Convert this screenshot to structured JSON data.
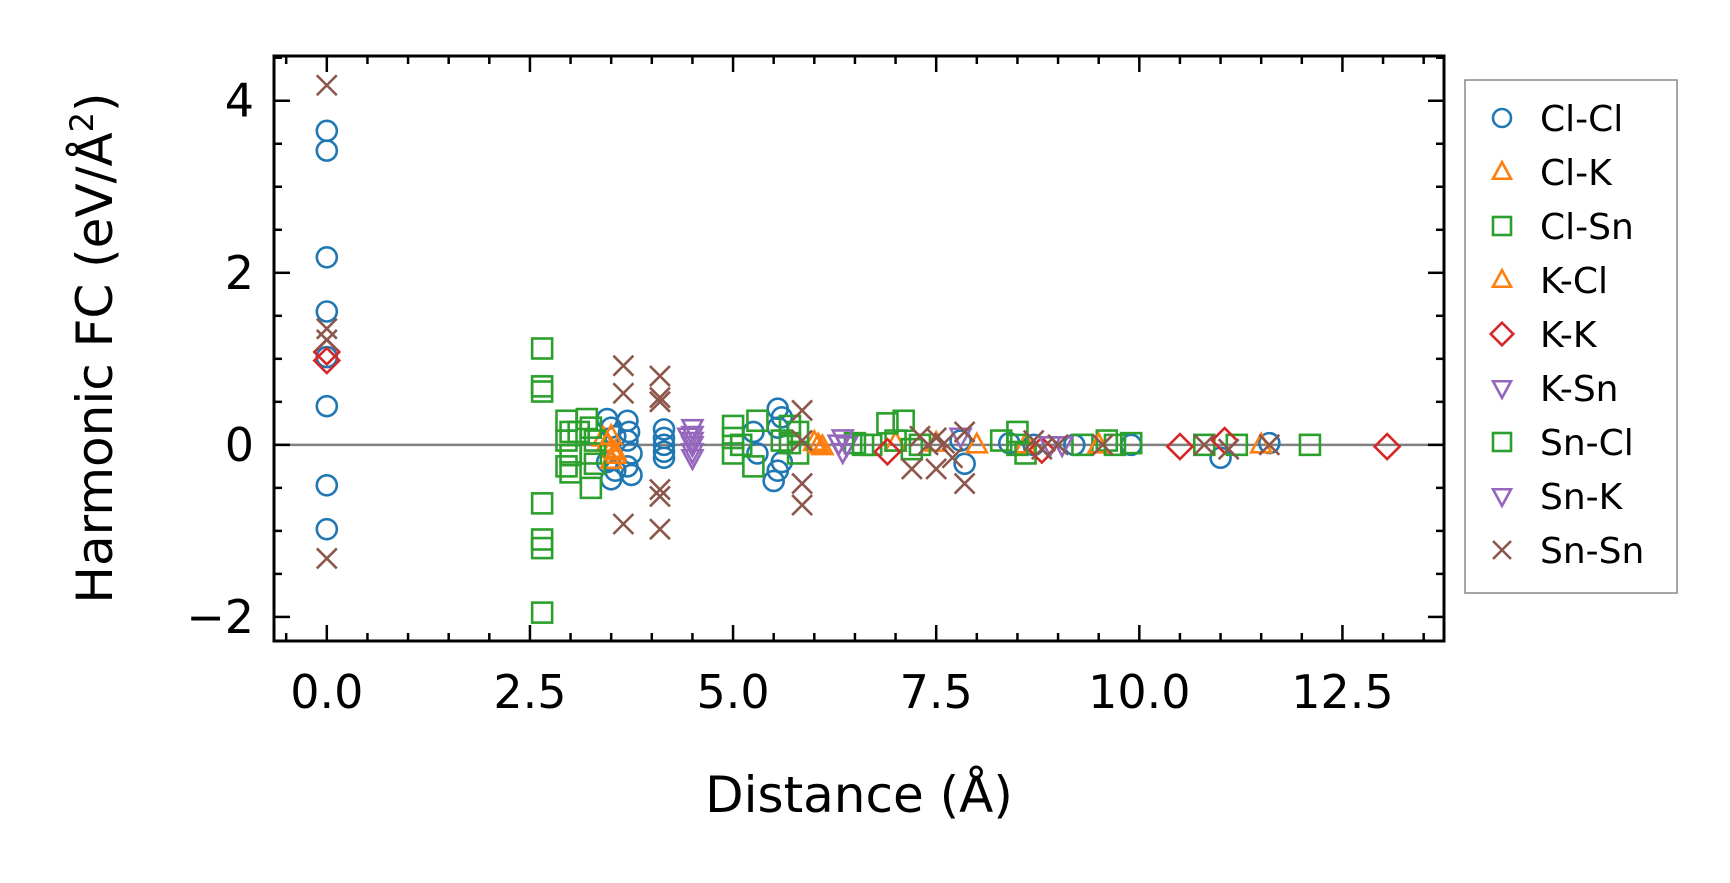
{
  "chart_data": {
    "type": "scatter",
    "xlabel": "Distance (Å)",
    "ylabel": "Harmonic FC (eV/Å",
    "ylabel_sup": "2",
    "ylabel_end": ")",
    "xlim": [
      -0.65,
      13.75
    ],
    "ylim": [
      -2.28,
      4.52
    ],
    "xticks": [
      0.0,
      2.5,
      5.0,
      7.5,
      10.0,
      12.5
    ],
    "xtick_labels": [
      "0.0",
      "2.5",
      "5.0",
      "7.5",
      "10.0",
      "12.5"
    ],
    "yticks": [
      -2,
      0,
      2,
      4
    ],
    "ytick_labels": [
      "−2",
      "0",
      "2",
      "4"
    ],
    "zero_line": 0,
    "legend_position": "right outside",
    "series": [
      {
        "name": "Cl-Cl",
        "marker": "circle",
        "color": "#1f77b4",
        "points": [
          [
            0,
            3.65
          ],
          [
            0,
            3.42
          ],
          [
            0,
            2.18
          ],
          [
            0,
            1.55
          ],
          [
            0,
            1.02
          ],
          [
            0,
            0.45
          ],
          [
            0,
            -0.47
          ],
          [
            0,
            -0.98
          ],
          [
            3.45,
            0.3
          ],
          [
            3.5,
            0.2
          ],
          [
            3.55,
            0.1
          ],
          [
            3.45,
            -0.2
          ],
          [
            3.55,
            -0.3
          ],
          [
            3.5,
            -0.4
          ],
          [
            3.7,
            0.28
          ],
          [
            3.72,
            0.15
          ],
          [
            3.7,
            0.05
          ],
          [
            3.75,
            -0.1
          ],
          [
            3.7,
            -0.25
          ],
          [
            3.75,
            -0.35
          ],
          [
            4.15,
            0.18
          ],
          [
            4.15,
            0.08
          ],
          [
            4.15,
            0.0
          ],
          [
            4.15,
            -0.08
          ],
          [
            4.15,
            -0.15
          ],
          [
            5.55,
            0.42
          ],
          [
            5.6,
            0.32
          ],
          [
            5.55,
            0.2
          ],
          [
            5.6,
            -0.2
          ],
          [
            5.55,
            -0.3
          ],
          [
            5.5,
            -0.42
          ],
          [
            5.25,
            0.15
          ],
          [
            5.3,
            -0.1
          ],
          [
            7.85,
            -0.22
          ],
          [
            7.8,
            0.05
          ],
          [
            8.4,
            0.02
          ],
          [
            8.7,
            0.0
          ],
          [
            9.2,
            0.0
          ],
          [
            9.9,
            0.0
          ],
          [
            11.0,
            -0.15
          ],
          [
            11.6,
            0.02
          ]
        ]
      },
      {
        "name": "Cl-K",
        "marker": "triangle-up",
        "color": "#ff7f0e",
        "points": [
          [
            3.4,
            0.08
          ],
          [
            3.45,
            0.02
          ],
          [
            3.5,
            -0.05
          ],
          [
            3.55,
            -0.12
          ],
          [
            3.5,
            -0.18
          ],
          [
            6.0,
            0.03
          ],
          [
            6.1,
            -0.02
          ],
          [
            7.0,
            0.02
          ],
          [
            8.0,
            0.0
          ],
          [
            8.6,
            0.0
          ],
          [
            11.5,
            0.0
          ]
        ]
      },
      {
        "name": "Cl-Sn",
        "marker": "square",
        "color": "#2ca02c",
        "points": [
          [
            2.65,
            1.12
          ],
          [
            2.65,
            0.68
          ],
          [
            2.65,
            0.62
          ],
          [
            2.65,
            -0.68
          ],
          [
            2.65,
            -1.1
          ],
          [
            2.65,
            -1.2
          ],
          [
            2.65,
            -1.95
          ],
          [
            2.95,
            0.28
          ],
          [
            3.0,
            0.15
          ],
          [
            2.95,
            0.05
          ],
          [
            3.0,
            -0.12
          ],
          [
            2.95,
            -0.25
          ],
          [
            3.0,
            -0.32
          ],
          [
            3.2,
            0.3
          ],
          [
            3.25,
            0.2
          ],
          [
            3.3,
            0.05
          ],
          [
            3.25,
            -0.1
          ],
          [
            3.3,
            -0.22
          ],
          [
            3.25,
            -0.5
          ],
          [
            5.0,
            0.22
          ],
          [
            5.0,
            0.08
          ],
          [
            5.0,
            -0.1
          ],
          [
            5.3,
            0.28
          ],
          [
            5.25,
            -0.25
          ],
          [
            5.7,
            0.22
          ],
          [
            5.8,
            0.15
          ],
          [
            5.7,
            0.02
          ],
          [
            5.8,
            -0.1
          ],
          [
            6.5,
            0.02
          ],
          [
            6.7,
            0.0
          ],
          [
            6.9,
            0.25
          ],
          [
            7.1,
            0.28
          ],
          [
            7.0,
            0.05
          ],
          [
            7.2,
            -0.05
          ],
          [
            8.5,
            0.15
          ],
          [
            8.6,
            -0.1
          ],
          [
            8.3,
            0.05
          ],
          [
            9.3,
            0.0
          ],
          [
            9.6,
            0.05
          ],
          [
            9.9,
            0.02
          ],
          [
            10.8,
            0.0
          ],
          [
            11.2,
            0.0
          ],
          [
            12.1,
            0.0
          ]
        ]
      },
      {
        "name": "K-Cl",
        "marker": "triangle-up",
        "color": "#ff7f0e",
        "points": [
          [
            3.5,
            0.1
          ],
          [
            3.55,
            -0.08
          ],
          [
            6.05,
            0.0
          ],
          [
            7.5,
            0.02
          ],
          [
            9.5,
            0.0
          ]
        ]
      },
      {
        "name": "K-K",
        "marker": "diamond",
        "color": "#d62728",
        "points": [
          [
            0,
            1.08
          ],
          [
            0,
            0.98
          ],
          [
            6.9,
            -0.08
          ],
          [
            8.8,
            -0.06
          ],
          [
            10.5,
            -0.02
          ],
          [
            11.05,
            0.05
          ],
          [
            13.05,
            -0.02
          ]
        ]
      },
      {
        "name": "K-Sn",
        "marker": "triangle-down",
        "color": "#9467bd",
        "points": [
          [
            4.5,
            0.2
          ],
          [
            4.5,
            0.12
          ],
          [
            4.5,
            0.05
          ],
          [
            4.5,
            0.0
          ],
          [
            4.5,
            -0.08
          ],
          [
            4.5,
            -0.15
          ],
          [
            6.35,
            0.08
          ],
          [
            6.4,
            0.0
          ],
          [
            6.35,
            -0.08
          ],
          [
            7.8,
            0.1
          ],
          [
            9.05,
            0.0
          ]
        ]
      },
      {
        "name": "Sn-Cl",
        "marker": "square",
        "color": "#2ca02c",
        "points": [
          [
            3.1,
            0.15
          ],
          [
            5.1,
            0.0
          ],
          [
            5.6,
            0.05
          ],
          [
            6.6,
            0.0
          ],
          [
            7.3,
            0.0
          ],
          [
            8.5,
            0.0
          ],
          [
            9.7,
            0.0
          ]
        ]
      },
      {
        "name": "Sn-K",
        "marker": "triangle-down",
        "color": "#9467bd",
        "points": [
          [
            4.45,
            0.1
          ],
          [
            6.3,
            0.02
          ],
          [
            8.9,
            0.0
          ]
        ]
      },
      {
        "name": "Sn-Sn",
        "marker": "x",
        "color": "#8c564b",
        "points": [
          [
            0,
            4.18
          ],
          [
            0,
            1.35
          ],
          [
            0,
            1.22
          ],
          [
            0,
            -1.32
          ],
          [
            3.65,
            0.92
          ],
          [
            3.65,
            0.6
          ],
          [
            3.65,
            -0.92
          ],
          [
            4.1,
            0.8
          ],
          [
            4.1,
            0.55
          ],
          [
            4.1,
            0.5
          ],
          [
            4.1,
            -0.52
          ],
          [
            4.1,
            -0.6
          ],
          [
            4.1,
            -0.98
          ],
          [
            5.85,
            0.4
          ],
          [
            5.85,
            0.05
          ],
          [
            5.85,
            -0.45
          ],
          [
            5.85,
            -0.7
          ],
          [
            7.2,
            -0.28
          ],
          [
            7.3,
            0.1
          ],
          [
            7.4,
            0.0
          ],
          [
            7.5,
            0.08
          ],
          [
            7.5,
            -0.28
          ],
          [
            7.6,
            0.02
          ],
          [
            7.7,
            -0.15
          ],
          [
            7.85,
            0.15
          ],
          [
            7.85,
            -0.45
          ],
          [
            8.7,
            0.05
          ],
          [
            8.8,
            -0.05
          ],
          [
            9.0,
            0.0
          ],
          [
            9.55,
            0.0
          ],
          [
            10.8,
            0.0
          ],
          [
            11.1,
            -0.05
          ],
          [
            11.6,
            0.0
          ]
        ]
      }
    ]
  }
}
